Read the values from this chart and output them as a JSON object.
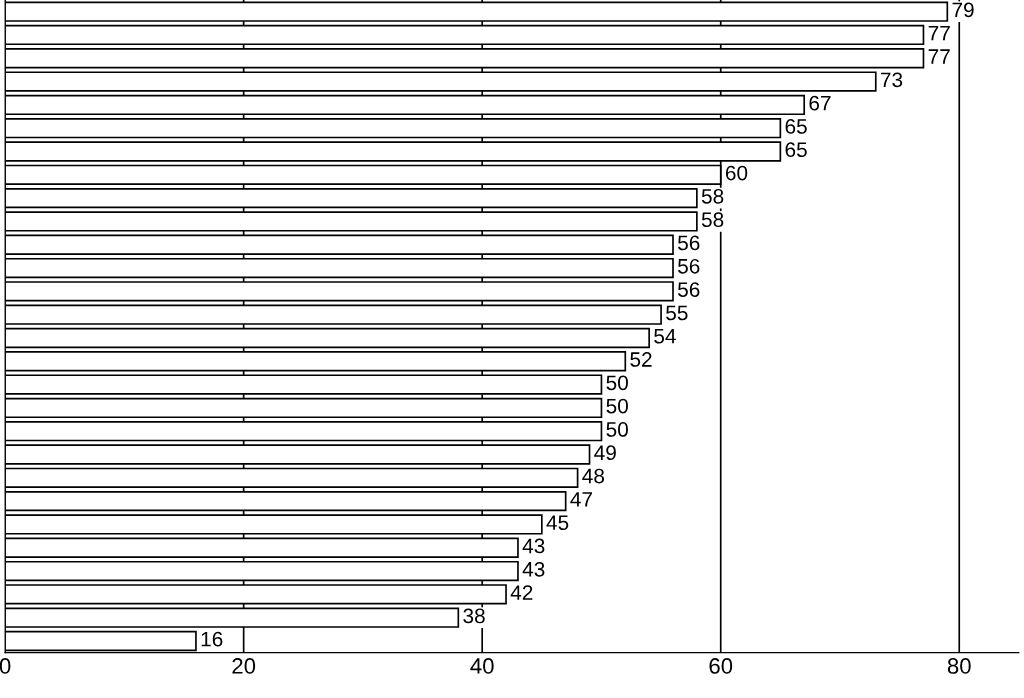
{
  "chart_data": {
    "type": "bar",
    "orientation": "horizontal",
    "categories": [
      null,
      null,
      null,
      null,
      null,
      null,
      null,
      null,
      null,
      null,
      null,
      null,
      null,
      null,
      null,
      null,
      null,
      null,
      null,
      null,
      null,
      null,
      null,
      null,
      null,
      null,
      null,
      null
    ],
    "values": [
      79,
      77,
      77,
      73,
      67,
      65,
      65,
      60,
      58,
      58,
      56,
      56,
      56,
      55,
      54,
      52,
      50,
      50,
      50,
      49,
      48,
      47,
      45,
      43,
      43,
      42,
      38,
      16
    ],
    "color": "#ffffff",
    "xlim": [
      0,
      85
    ],
    "xticks": [
      0,
      20,
      40,
      60,
      80
    ],
    "grid": "x",
    "data_labels": true,
    "tick_labels": "x"
  }
}
